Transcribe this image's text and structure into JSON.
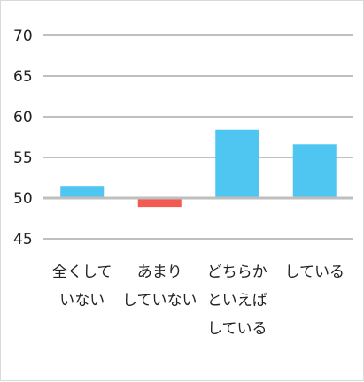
{
  "chart_data": {
    "type": "bar",
    "title": "",
    "xlabel": "",
    "ylabel": "",
    "ylim": [
      45,
      70
    ],
    "yticks": [
      70,
      65,
      60,
      55,
      50,
      45
    ],
    "baseline": 50,
    "grid": true,
    "legend": "none",
    "categories": [
      [
        "全くして",
        "いない"
      ],
      [
        "あまり",
        "していない"
      ],
      [
        "どちらか",
        "といえば",
        "している"
      ],
      [
        "している"
      ]
    ],
    "values": [
      51.5,
      48.9,
      58.4,
      56.6
    ],
    "colors": {
      "positive": "#4fc6f2",
      "negative": "#f25a52",
      "gridline": "#bfbfbf",
      "text": "#222222"
    }
  }
}
